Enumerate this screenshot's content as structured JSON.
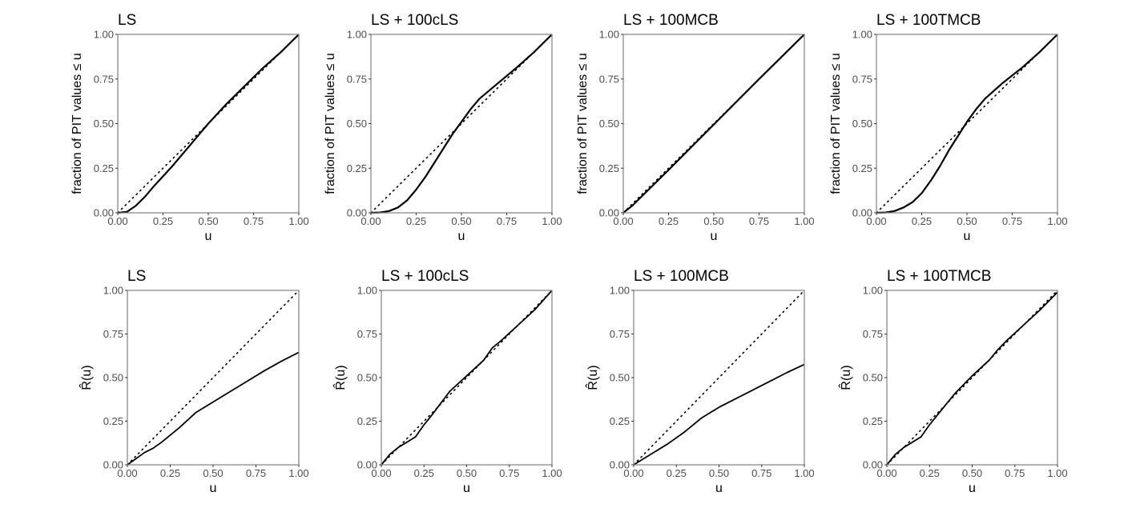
{
  "chart_data": [
    {
      "type": "line",
      "title": "LS",
      "xlabel": "u",
      "ylabel": "fraction of PIT values ≤ u",
      "xlim": [
        0,
        1
      ],
      "ylim": [
        0,
        1
      ],
      "xticks": [
        "0.00",
        "0.25",
        "0.50",
        "0.75",
        "1.00"
      ],
      "yticks": [
        "0.00",
        "0.25",
        "0.50",
        "0.75",
        "1.00"
      ],
      "grid": false,
      "x": [
        0,
        0.05,
        0.1,
        0.15,
        0.2,
        0.3,
        0.4,
        0.5,
        0.6,
        0.7,
        0.8,
        0.9,
        1
      ],
      "series": [
        {
          "values": [
            0,
            0.005,
            0.04,
            0.09,
            0.15,
            0.26,
            0.38,
            0.5,
            0.61,
            0.71,
            0.81,
            0.9,
            1
          ]
        }
      ],
      "reference": "diagonal"
    },
    {
      "type": "line",
      "title": "LS + 100cLS",
      "xlabel": "u",
      "ylabel": "fraction of PIT values ≤ u",
      "xlim": [
        0,
        1
      ],
      "ylim": [
        0,
        1
      ],
      "xticks": [
        "0.00",
        "0.25",
        "0.50",
        "0.75",
        "1.00"
      ],
      "yticks": [
        "0.00",
        "0.25",
        "0.50",
        "0.75",
        "1.00"
      ],
      "grid": false,
      "x": [
        0,
        0.05,
        0.1,
        0.15,
        0.2,
        0.25,
        0.3,
        0.35,
        0.4,
        0.45,
        0.5,
        0.55,
        0.6,
        0.7,
        0.8,
        0.9,
        1
      ],
      "series": [
        {
          "values": [
            0,
            0.002,
            0.01,
            0.03,
            0.07,
            0.13,
            0.2,
            0.28,
            0.36,
            0.44,
            0.51,
            0.58,
            0.64,
            0.725,
            0.81,
            0.9,
            1
          ]
        }
      ],
      "reference": "diagonal"
    },
    {
      "type": "line",
      "title": "LS + 100MCB",
      "xlabel": "u",
      "ylabel": "fraction of PIT values ≤ u",
      "xlim": [
        0,
        1
      ],
      "ylim": [
        0,
        1
      ],
      "xticks": [
        "0.00",
        "0.25",
        "0.50",
        "0.75",
        "1.00"
      ],
      "yticks": [
        "0.00",
        "0.25",
        "0.50",
        "0.75",
        "1.00"
      ],
      "grid": false,
      "x": [
        0,
        0.05,
        0.1,
        0.25,
        0.5,
        0.75,
        1
      ],
      "series": [
        {
          "values": [
            0,
            0.04,
            0.09,
            0.24,
            0.495,
            0.75,
            1
          ]
        }
      ],
      "reference": "diagonal"
    },
    {
      "type": "line",
      "title": "LS + 100TMCB",
      "xlabel": "u",
      "ylabel": "fraction of PIT values ≤ u",
      "xlim": [
        0,
        1
      ],
      "ylim": [
        0,
        1
      ],
      "xticks": [
        "0.00",
        "0.25",
        "0.50",
        "0.75",
        "1.00"
      ],
      "yticks": [
        "0.00",
        "0.25",
        "0.50",
        "0.75",
        "1.00"
      ],
      "grid": false,
      "x": [
        0,
        0.05,
        0.1,
        0.15,
        0.2,
        0.25,
        0.3,
        0.35,
        0.4,
        0.45,
        0.5,
        0.55,
        0.6,
        0.7,
        0.8,
        0.9,
        1
      ],
      "series": [
        {
          "values": [
            0,
            0.002,
            0.01,
            0.03,
            0.06,
            0.11,
            0.18,
            0.26,
            0.35,
            0.43,
            0.51,
            0.58,
            0.64,
            0.73,
            0.81,
            0.9,
            1
          ]
        }
      ],
      "reference": "diagonal"
    },
    {
      "type": "line",
      "title": "LS",
      "xlabel": "u",
      "ylabel": "R̂(u)",
      "xlim": [
        0,
        1
      ],
      "ylim": [
        0,
        1
      ],
      "xticks": [
        "0.00",
        "0.25",
        "0.50",
        "0.75",
        "1.00"
      ],
      "yticks": [
        "0.00",
        "0.25",
        "0.50",
        "0.75",
        "1.00"
      ],
      "grid": false,
      "x": [
        0,
        0.1,
        0.15,
        0.2,
        0.3,
        0.4,
        0.5,
        0.6,
        0.7,
        0.8,
        0.9,
        1
      ],
      "series": [
        {
          "values": [
            0,
            0.07,
            0.095,
            0.13,
            0.21,
            0.3,
            0.36,
            0.42,
            0.48,
            0.54,
            0.595,
            0.645
          ]
        }
      ],
      "reference": "diagonal"
    },
    {
      "type": "line",
      "title": "LS + 100cLS",
      "xlabel": "u",
      "ylabel": "R̂(u)",
      "xlim": [
        0,
        1
      ],
      "ylim": [
        0,
        1
      ],
      "xticks": [
        "0.00",
        "0.25",
        "0.50",
        "0.75",
        "1.00"
      ],
      "yticks": [
        "0.00",
        "0.25",
        "0.50",
        "0.75",
        "1.00"
      ],
      "grid": false,
      "x": [
        0,
        0.05,
        0.1,
        0.15,
        0.2,
        0.25,
        0.3,
        0.4,
        0.5,
        0.6,
        0.65,
        0.7,
        0.8,
        0.9,
        1
      ],
      "series": [
        {
          "values": [
            0,
            0.06,
            0.1,
            0.13,
            0.16,
            0.23,
            0.29,
            0.42,
            0.51,
            0.6,
            0.67,
            0.71,
            0.8,
            0.89,
            1
          ]
        }
      ],
      "reference": "diagonal"
    },
    {
      "type": "line",
      "title": "LS + 100MCB",
      "xlabel": "u",
      "ylabel": "R̂(u)",
      "xlim": [
        0,
        1
      ],
      "ylim": [
        0,
        1
      ],
      "xticks": [
        "0.00",
        "0.25",
        "0.50",
        "0.75",
        "1.00"
      ],
      "yticks": [
        "0.00",
        "0.25",
        "0.50",
        "0.75",
        "1.00"
      ],
      "grid": false,
      "x": [
        0,
        0.1,
        0.2,
        0.3,
        0.4,
        0.5,
        0.6,
        0.7,
        0.8,
        0.9,
        1
      ],
      "series": [
        {
          "values": [
            0,
            0.06,
            0.12,
            0.19,
            0.27,
            0.33,
            0.38,
            0.43,
            0.48,
            0.53,
            0.575
          ]
        }
      ],
      "reference": "diagonal"
    },
    {
      "type": "line",
      "title": "LS + 100TMCB",
      "xlabel": "u",
      "ylabel": "R̂(u)",
      "xlim": [
        0,
        1
      ],
      "ylim": [
        0,
        1
      ],
      "xticks": [
        "0.00",
        "0.25",
        "0.50",
        "0.75",
        "1.00"
      ],
      "yticks": [
        "0.00",
        "0.25",
        "0.50",
        "0.75",
        "1.00"
      ],
      "grid": false,
      "x": [
        0,
        0.05,
        0.1,
        0.15,
        0.2,
        0.25,
        0.3,
        0.4,
        0.5,
        0.6,
        0.65,
        0.7,
        0.8,
        0.9,
        1
      ],
      "series": [
        {
          "values": [
            0,
            0.06,
            0.1,
            0.13,
            0.16,
            0.23,
            0.29,
            0.41,
            0.51,
            0.6,
            0.66,
            0.71,
            0.8,
            0.89,
            0.99
          ]
        }
      ],
      "reference": "diagonal"
    }
  ]
}
